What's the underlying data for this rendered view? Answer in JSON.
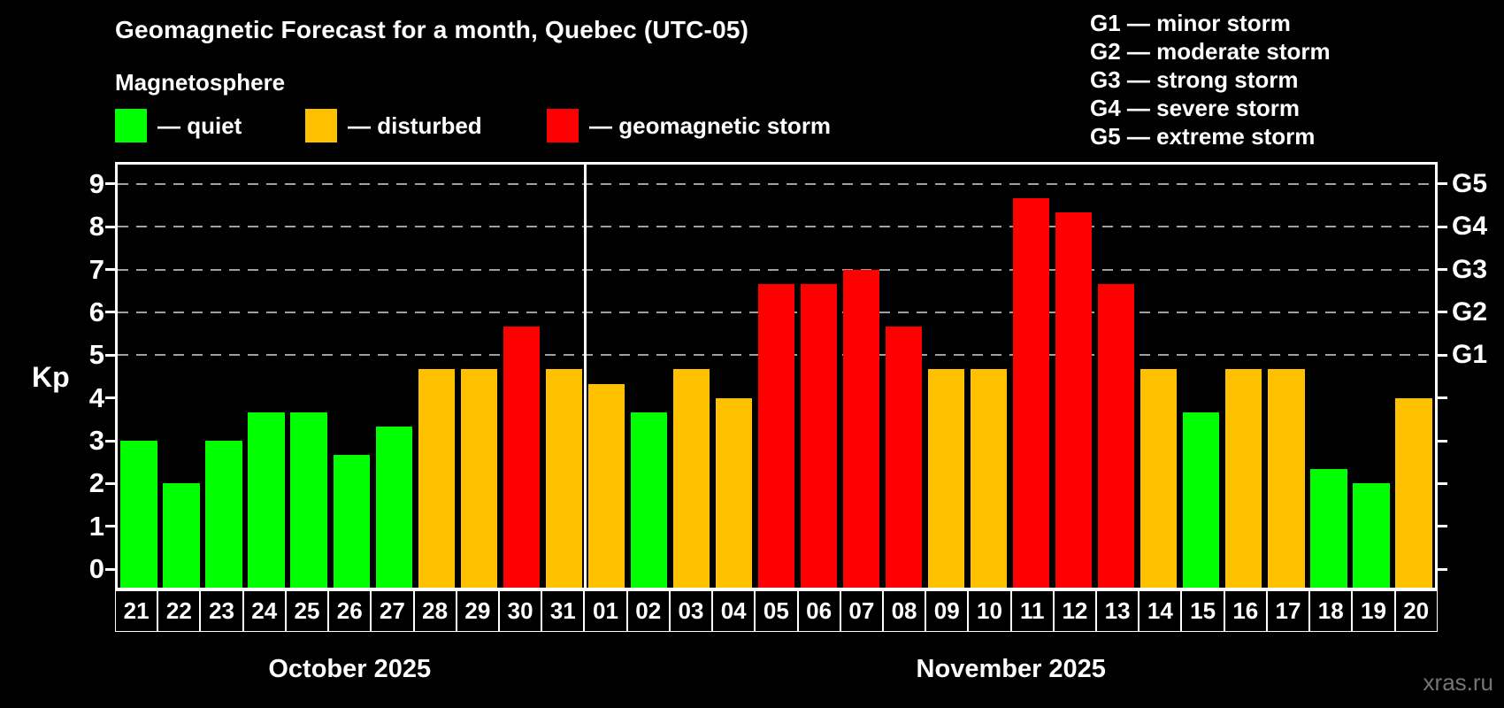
{
  "title": "Geomagnetic Forecast for a month, Quebec (UTC-05)",
  "subtitle": "Magnetosphere",
  "watermark": "xras.ru",
  "colors": {
    "quiet": "#00ff00",
    "disturbed": "#ffc000",
    "storm": "#ff0000",
    "grid": "#a0a0a0",
    "axis": "#ffffff",
    "background": "#000000",
    "watermark_gray": "#757575"
  },
  "legend": [
    {
      "key": "quiet",
      "label": "— quiet"
    },
    {
      "key": "disturbed",
      "label": "— disturbed"
    },
    {
      "key": "storm",
      "label": "— geomagnetic storm"
    }
  ],
  "g_scale_legend": [
    "G1 — minor storm",
    "G2 — moderate storm",
    "G3 — strong storm",
    "G4 — severe storm",
    "G5 — extreme storm"
  ],
  "chart_data": {
    "type": "bar",
    "title": "Geomagnetic Forecast for a month, Quebec (UTC-05)",
    "ylabel": "Kp",
    "yticks": [
      0,
      1,
      2,
      3,
      4,
      5,
      6,
      7,
      8,
      9
    ],
    "ylim": [
      -0.43,
      9.45
    ],
    "gridlines": [
      5,
      6,
      7,
      8,
      9
    ],
    "grid_dashed": true,
    "right_axis": [
      {
        "label": "G1",
        "value": 5
      },
      {
        "label": "G2",
        "value": 6
      },
      {
        "label": "G3",
        "value": 7
      },
      {
        "label": "G4",
        "value": 8
      },
      {
        "label": "G5",
        "value": 9
      }
    ],
    "months": [
      {
        "label": "October 2025",
        "count": 11
      },
      {
        "label": "November 2025",
        "count": 20
      }
    ],
    "bars": [
      {
        "day": "21",
        "value": 3.0,
        "level": "quiet"
      },
      {
        "day": "22",
        "value": 2.0,
        "level": "quiet"
      },
      {
        "day": "23",
        "value": 3.0,
        "level": "quiet"
      },
      {
        "day": "24",
        "value": 3.67,
        "level": "quiet"
      },
      {
        "day": "25",
        "value": 3.67,
        "level": "quiet"
      },
      {
        "day": "26",
        "value": 2.67,
        "level": "quiet"
      },
      {
        "day": "27",
        "value": 3.33,
        "level": "quiet"
      },
      {
        "day": "28",
        "value": 4.67,
        "level": "disturbed"
      },
      {
        "day": "29",
        "value": 4.67,
        "level": "disturbed"
      },
      {
        "day": "30",
        "value": 5.67,
        "level": "storm"
      },
      {
        "day": "31",
        "value": 4.67,
        "level": "disturbed"
      },
      {
        "day": "01",
        "value": 4.33,
        "level": "disturbed"
      },
      {
        "day": "02",
        "value": 3.67,
        "level": "quiet"
      },
      {
        "day": "03",
        "value": 4.67,
        "level": "disturbed"
      },
      {
        "day": "04",
        "value": 4.0,
        "level": "disturbed"
      },
      {
        "day": "05",
        "value": 6.67,
        "level": "storm"
      },
      {
        "day": "06",
        "value": 6.67,
        "level": "storm"
      },
      {
        "day": "07",
        "value": 7.0,
        "level": "storm"
      },
      {
        "day": "08",
        "value": 5.67,
        "level": "storm"
      },
      {
        "day": "09",
        "value": 4.67,
        "level": "disturbed"
      },
      {
        "day": "10",
        "value": 4.67,
        "level": "disturbed"
      },
      {
        "day": "11",
        "value": 8.67,
        "level": "storm"
      },
      {
        "day": "12",
        "value": 8.33,
        "level": "storm"
      },
      {
        "day": "13",
        "value": 6.67,
        "level": "storm"
      },
      {
        "day": "14",
        "value": 4.67,
        "level": "disturbed"
      },
      {
        "day": "15",
        "value": 3.67,
        "level": "quiet"
      },
      {
        "day": "16",
        "value": 4.67,
        "level": "disturbed"
      },
      {
        "day": "17",
        "value": 4.67,
        "level": "disturbed"
      },
      {
        "day": "18",
        "value": 2.33,
        "level": "quiet"
      },
      {
        "day": "19",
        "value": 2.0,
        "level": "quiet"
      },
      {
        "day": "20",
        "value": 4.0,
        "level": "disturbed"
      }
    ]
  }
}
